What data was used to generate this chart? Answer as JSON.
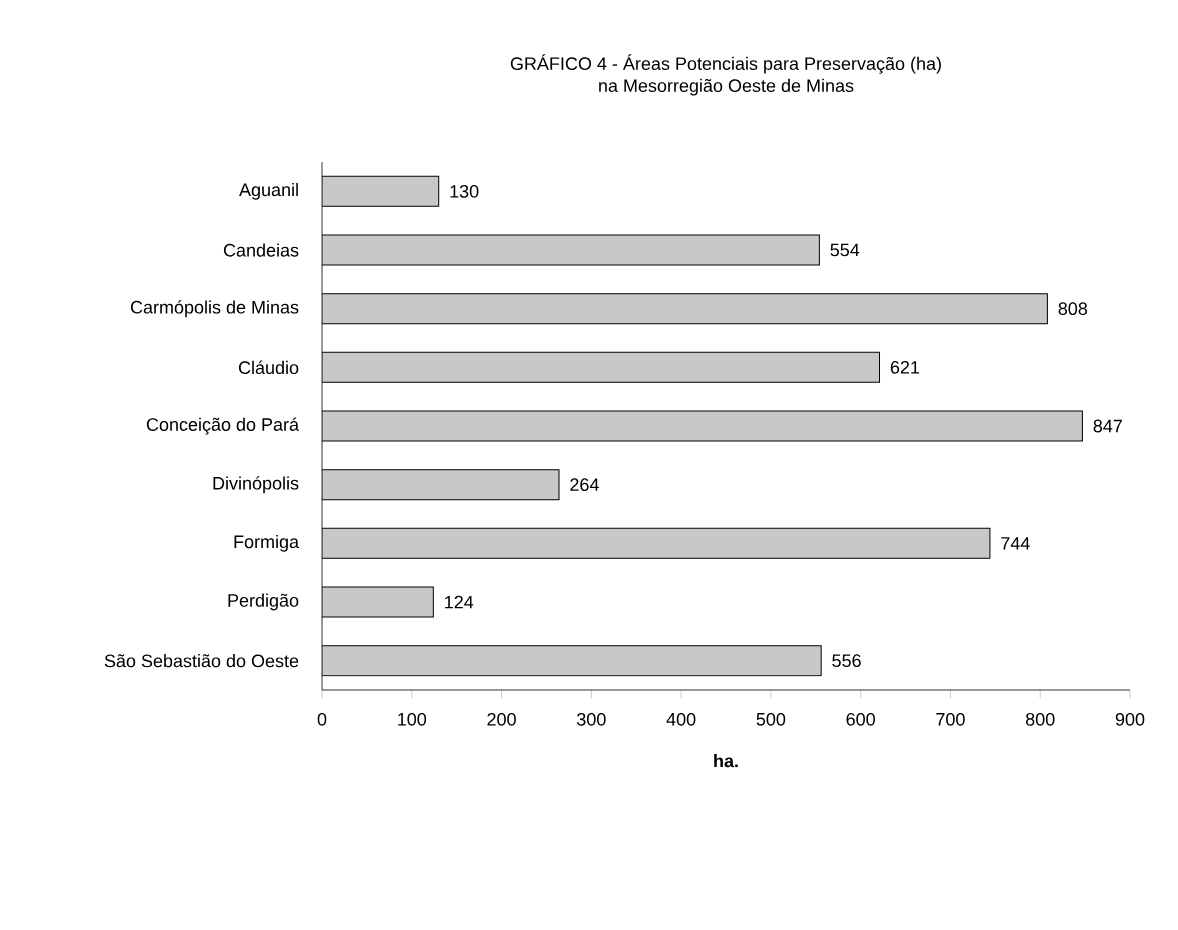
{
  "chart_data": {
    "type": "bar",
    "orientation": "horizontal",
    "title": "GRÁFICO 4 - Áreas Potenciais para Preservação (ha)",
    "subtitle": "na Mesorregião Oeste de Minas",
    "xlabel": "ha.",
    "categories": [
      "Aguanil",
      "Candeias",
      "Carmópolis de Minas",
      "Cláudio",
      "Conceição do Pará",
      "Divinópolis",
      "Formiga",
      "Perdigão",
      "São Sebastião do Oeste"
    ],
    "values": [
      130,
      554,
      808,
      621,
      847,
      264,
      744,
      124,
      556
    ],
    "color": "#c8c8c8",
    "data_labels": true,
    "xlim": [
      0,
      900
    ],
    "xticks": [
      0,
      100,
      200,
      300,
      400,
      500,
      600,
      700,
      800,
      900
    ],
    "grid": false
  }
}
